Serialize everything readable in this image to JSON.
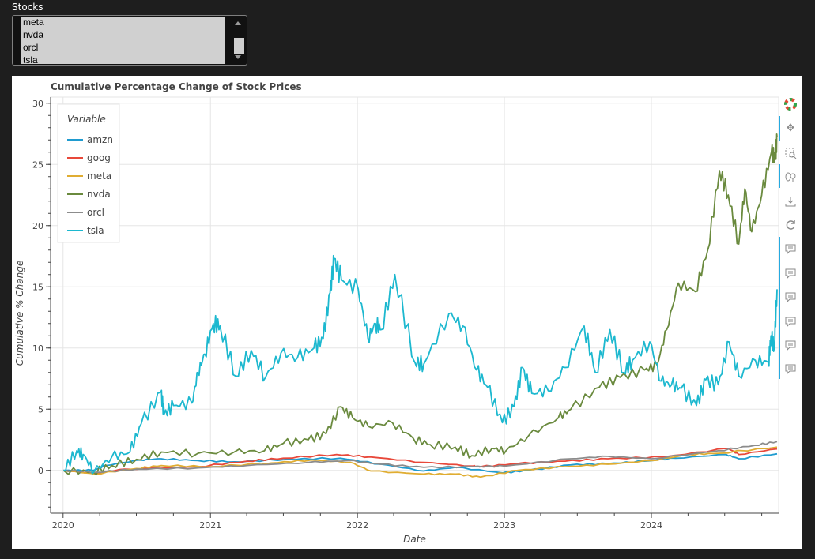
{
  "widget": {
    "label": "Stocks",
    "options": [
      "meta",
      "nvda",
      "orcl",
      "tsla"
    ]
  },
  "toolbar": {
    "tools": [
      "bokeh-logo-icon",
      "pan-icon",
      "box-zoom-icon",
      "wheel-zoom-icon",
      "save-icon",
      "reset-icon",
      "hover-icon",
      "hover-icon",
      "hover-icon",
      "hover-icon",
      "hover-icon",
      "hover-icon"
    ]
  },
  "chart_data": {
    "type": "line",
    "title": "Cumulative Percentage Change of Stock Prices",
    "xlabel": "Date",
    "ylabel": "Cumulative % Change",
    "x_ticks": [
      "2020",
      "2021",
      "2022",
      "2023",
      "2024"
    ],
    "y_ticks": [
      "0",
      "5",
      "10",
      "15",
      "20",
      "25",
      "30"
    ],
    "xlim": [
      "2019-12-01",
      "2024-11-12"
    ],
    "ylim": [
      -3.5,
      30.5
    ],
    "legend_title": "Variable",
    "legend_placement": "top-left",
    "grid": true,
    "series": [
      {
        "name": "amzn",
        "color": "#1f9bcf",
        "points": [
          [
            "2020-01-02",
            0
          ],
          [
            "2020-03-16",
            0
          ],
          [
            "2020-04-15",
            0.4
          ],
          [
            "2020-07-10",
            0.85
          ],
          [
            "2020-09-01",
            0.95
          ],
          [
            "2020-12-01",
            0.8
          ],
          [
            "2021-03-01",
            0.7
          ],
          [
            "2021-07-08",
            0.9
          ],
          [
            "2021-11-19",
            1.0
          ],
          [
            "2022-03-01",
            0.5
          ],
          [
            "2022-06-15",
            -0.05
          ],
          [
            "2022-09-01",
            0.25
          ],
          [
            "2022-12-28",
            -0.2
          ],
          [
            "2023-03-01",
            0.0
          ],
          [
            "2023-06-15",
            0.45
          ],
          [
            "2023-09-15",
            0.55
          ],
          [
            "2023-12-15",
            0.75
          ],
          [
            "2024-03-01",
            1.0
          ],
          [
            "2024-07-05",
            1.3
          ],
          [
            "2024-08-05",
            0.95
          ],
          [
            "2024-11-08",
            1.35
          ]
        ]
      },
      {
        "name": "goog",
        "color": "#e8483a",
        "points": [
          [
            "2020-01-02",
            0
          ],
          [
            "2020-03-20",
            -0.25
          ],
          [
            "2020-06-01",
            0.1
          ],
          [
            "2020-12-01",
            0.3
          ],
          [
            "2021-04-01",
            0.75
          ],
          [
            "2021-07-01",
            1.0
          ],
          [
            "2021-11-10",
            1.3
          ],
          [
            "2022-02-01",
            1.1
          ],
          [
            "2022-06-15",
            0.65
          ],
          [
            "2022-10-15",
            0.35
          ],
          [
            "2022-11-03",
            0.3
          ],
          [
            "2023-02-01",
            0.55
          ],
          [
            "2023-06-01",
            0.75
          ],
          [
            "2023-09-15",
            0.95
          ],
          [
            "2024-02-01",
            1.1
          ],
          [
            "2024-07-10",
            1.8
          ],
          [
            "2024-08-05",
            1.3
          ],
          [
            "2024-11-08",
            1.75
          ]
        ]
      },
      {
        "name": "meta",
        "color": "#e0ad32",
        "points": [
          [
            "2020-01-02",
            0
          ],
          [
            "2020-03-18",
            -0.3
          ],
          [
            "2020-07-01",
            0.15
          ],
          [
            "2020-09-01",
            0.4
          ],
          [
            "2021-01-01",
            0.3
          ],
          [
            "2021-06-01",
            0.6
          ],
          [
            "2021-09-07",
            0.85
          ],
          [
            "2021-12-15",
            0.65
          ],
          [
            "2022-02-03",
            -0.05
          ],
          [
            "2022-06-15",
            -0.3
          ],
          [
            "2022-09-01",
            -0.3
          ],
          [
            "2022-11-03",
            -0.55
          ],
          [
            "2023-02-02",
            0.0
          ],
          [
            "2023-06-01",
            0.3
          ],
          [
            "2023-09-15",
            0.5
          ],
          [
            "2024-01-01",
            0.8
          ],
          [
            "2024-04-05",
            1.3
          ],
          [
            "2024-06-15",
            1.4
          ],
          [
            "2024-11-08",
            1.9
          ]
        ]
      },
      {
        "name": "nvda",
        "color": "#6a8a3e",
        "points": [
          [
            "2020-01-02",
            0
          ],
          [
            "2020-03-16",
            -0.15
          ],
          [
            "2020-05-01",
            0.4
          ],
          [
            "2020-07-01",
            0.9
          ],
          [
            "2020-09-01",
            1.5
          ],
          [
            "2020-12-01",
            1.4
          ],
          [
            "2021-03-01",
            1.5
          ],
          [
            "2021-05-15",
            1.6
          ],
          [
            "2021-07-01",
            2.2
          ],
          [
            "2021-09-01",
            2.5
          ],
          [
            "2021-10-15",
            3.0
          ],
          [
            "2021-11-20",
            5.2
          ],
          [
            "2021-12-20",
            4.3
          ],
          [
            "2022-01-28",
            3.6
          ],
          [
            "2022-03-29",
            3.9
          ],
          [
            "2022-05-20",
            2.6
          ],
          [
            "2022-07-01",
            2.1
          ],
          [
            "2022-09-01",
            1.9
          ],
          [
            "2022-10-12",
            1.2
          ],
          [
            "2022-12-01",
            1.8
          ],
          [
            "2023-01-05",
            1.6
          ],
          [
            "2023-03-01",
            2.8
          ],
          [
            "2023-05-15",
            4.3
          ],
          [
            "2023-06-15",
            5.0
          ],
          [
            "2023-08-25",
            6.8
          ],
          [
            "2023-10-15",
            7.6
          ],
          [
            "2023-12-15",
            8.2
          ],
          [
            "2024-01-15",
            8.6
          ],
          [
            "2024-02-08",
            11.5
          ],
          [
            "2024-03-08",
            15.3
          ],
          [
            "2024-04-19",
            14.6
          ],
          [
            "2024-05-20",
            18.0
          ],
          [
            "2024-06-18",
            24.5
          ],
          [
            "2024-07-10",
            22.5
          ],
          [
            "2024-08-05",
            18.5
          ],
          [
            "2024-08-20",
            23.0
          ],
          [
            "2024-09-06",
            19.5
          ],
          [
            "2024-10-01",
            22.5
          ],
          [
            "2024-10-25",
            26.0
          ],
          [
            "2024-11-04",
            25.5
          ],
          [
            "2024-11-08",
            27.2
          ]
        ]
      },
      {
        "name": "orcl",
        "color": "#8c8c8c",
        "points": [
          [
            "2020-01-02",
            0
          ],
          [
            "2020-03-23",
            -0.15
          ],
          [
            "2020-07-01",
            0.1
          ],
          [
            "2020-12-01",
            0.2
          ],
          [
            "2021-04-01",
            0.4
          ],
          [
            "2021-09-01",
            0.65
          ],
          [
            "2021-12-10",
            0.8
          ],
          [
            "2022-03-01",
            0.5
          ],
          [
            "2022-06-15",
            0.25
          ],
          [
            "2022-10-15",
            0.3
          ],
          [
            "2023-01-02",
            0.35
          ],
          [
            "2023-06-15",
            0.95
          ],
          [
            "2023-09-15",
            1.15
          ],
          [
            "2024-01-01",
            0.95
          ],
          [
            "2024-06-15",
            1.6
          ],
          [
            "2024-09-15",
            2.05
          ],
          [
            "2024-11-08",
            2.35
          ]
        ]
      },
      {
        "name": "tsla",
        "color": "#1cb8cf",
        "points": [
          [
            "2020-01-02",
            0
          ],
          [
            "2020-02-04",
            1.6
          ],
          [
            "2020-02-20",
            1.3
          ],
          [
            "2020-03-18",
            -0.1
          ],
          [
            "2020-05-01",
            1.1
          ],
          [
            "2020-06-15",
            1.5
          ],
          [
            "2020-07-13",
            3.8
          ],
          [
            "2020-08-31",
            6.4
          ],
          [
            "2020-09-08",
            4.6
          ],
          [
            "2020-10-01",
            5.3
          ],
          [
            "2020-11-16",
            5.5
          ],
          [
            "2020-12-01",
            8.0
          ],
          [
            "2020-12-18",
            9.5
          ],
          [
            "2021-01-08",
            12.0
          ],
          [
            "2021-01-25",
            11.8
          ],
          [
            "2021-03-05",
            7.7
          ],
          [
            "2021-04-12",
            9.8
          ],
          [
            "2021-05-18",
            7.6
          ],
          [
            "2021-06-25",
            9.6
          ],
          [
            "2021-08-05",
            9.2
          ],
          [
            "2021-09-15",
            10.0
          ],
          [
            "2021-10-08",
            10.8
          ],
          [
            "2021-10-25",
            14.5
          ],
          [
            "2021-11-04",
            17.3
          ],
          [
            "2021-11-22",
            15.6
          ],
          [
            "2022-01-03",
            14.8
          ],
          [
            "2022-01-27",
            10.8
          ],
          [
            "2022-02-15",
            12.0
          ],
          [
            "2022-03-01",
            11.5
          ],
          [
            "2022-04-04",
            16.0
          ],
          [
            "2022-05-24",
            8.8
          ],
          [
            "2022-06-15",
            8.7
          ],
          [
            "2022-08-16",
            12.8
          ],
          [
            "2022-09-20",
            11.8
          ],
          [
            "2022-10-24",
            8.2
          ],
          [
            "2022-11-20",
            6.8
          ],
          [
            "2022-12-27",
            3.9
          ],
          [
            "2023-01-25",
            5.2
          ],
          [
            "2023-02-15",
            8.4
          ],
          [
            "2023-03-10",
            6.3
          ],
          [
            "2023-04-20",
            6.5
          ],
          [
            "2023-06-01",
            8.4
          ],
          [
            "2023-07-18",
            11.8
          ],
          [
            "2023-08-15",
            8.0
          ],
          [
            "2023-09-20",
            11.5
          ],
          [
            "2023-10-25",
            8.0
          ],
          [
            "2023-11-15",
            9.0
          ],
          [
            "2023-12-28",
            10.5
          ],
          [
            "2024-01-25",
            7.3
          ],
          [
            "2024-02-20",
            7.0
          ],
          [
            "2024-03-15",
            6.7
          ],
          [
            "2024-04-22",
            5.3
          ],
          [
            "2024-05-15",
            7.4
          ],
          [
            "2024-06-15",
            7.0
          ],
          [
            "2024-07-12",
            10.5
          ],
          [
            "2024-08-05",
            7.7
          ],
          [
            "2024-09-15",
            9.0
          ],
          [
            "2024-10-18",
            8.8
          ],
          [
            "2024-10-24",
            11.0
          ],
          [
            "2024-11-01",
            10.0
          ],
          [
            "2024-11-08",
            14.8
          ]
        ]
      }
    ]
  }
}
